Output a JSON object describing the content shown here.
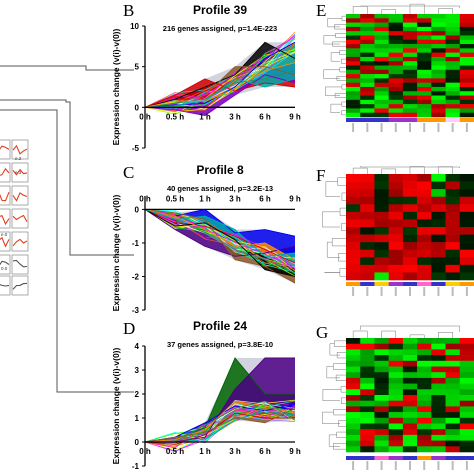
{
  "figure": {
    "panel_letters": [
      "B",
      "C",
      "D",
      "E",
      "F",
      "G"
    ],
    "mini_labels": [
      "e.2",
      "e.3",
      "e.0",
      "0.0"
    ]
  },
  "chart_data": [
    {
      "type": "line",
      "panel": "B",
      "title": "Profile 39",
      "subtitle": "216 genes assigned, p=1.4E-223",
      "ylabel": "Expression change (v(i)-v(0))",
      "x": [
        "0 h",
        "0.5 h",
        "1 h",
        "3 h",
        "6 h",
        "9 h"
      ],
      "yticks": [
        -5,
        0,
        5,
        10
      ],
      "ylim": [
        -5,
        10
      ],
      "model_profile": [
        0,
        0.5,
        1,
        3,
        5.5,
        8
      ],
      "series": [
        {
          "color": "#0000ee",
          "values": [
            0,
            0.3,
            0.5,
            2.5,
            6,
            8
          ]
        },
        {
          "color": "#000000",
          "values": [
            0,
            1,
            2.5,
            4,
            8,
            6
          ]
        },
        {
          "color": "#8b5a2b",
          "values": [
            0,
            0.5,
            1.5,
            5,
            5,
            4
          ]
        },
        {
          "color": "#d40000",
          "values": [
            0,
            1.5,
            3.5,
            2,
            3,
            2.5
          ]
        },
        {
          "color": "#2e8b57",
          "values": [
            0,
            0.5,
            1,
            3,
            3.5,
            4.5
          ]
        },
        {
          "color": "#8000c0",
          "values": [
            0,
            -0.3,
            -1,
            1.5,
            4,
            3
          ]
        },
        {
          "color": "#ff8c00",
          "values": [
            0,
            0.8,
            0.7,
            2.3,
            4.5,
            5.5
          ]
        },
        {
          "color": "#00aaaa",
          "values": [
            0,
            0.2,
            0.8,
            3.5,
            2.5,
            3.5
          ]
        }
      ]
    },
    {
      "type": "line",
      "panel": "C",
      "title": "Profile 8",
      "subtitle": "40 genes assigned, p=3.2E-13",
      "ylabel": "Expression change (v(i)-v(0))",
      "x": [
        "0 h",
        "0.5 h",
        "1 h",
        "3 h",
        "6 h",
        "9 h"
      ],
      "yticks": [
        -3,
        -2,
        -1,
        0
      ],
      "ylim": [
        -3,
        0.4
      ],
      "model_profile": [
        0,
        -0.3,
        -0.6,
        -1,
        -1.4,
        -1.7
      ],
      "series": [
        {
          "color": "#4b0082",
          "values": [
            0,
            -0.6,
            -1.1,
            -1.4,
            -1.3,
            -1.1
          ]
        },
        {
          "color": "#0000ee",
          "values": [
            0,
            -0.2,
            0,
            -0.7,
            -0.6,
            -0.8
          ]
        },
        {
          "color": "#d40000",
          "values": [
            0,
            -0.4,
            -0.5,
            -0.8,
            -1.2,
            -1.6
          ]
        },
        {
          "color": "#2e8b57",
          "values": [
            0,
            -0.3,
            -0.7,
            -1.2,
            -1.5,
            -1.9
          ]
        },
        {
          "color": "#8b5a2b",
          "values": [
            0,
            -0.1,
            -0.3,
            -1.5,
            -1.7,
            -2.2
          ]
        },
        {
          "color": "#000000",
          "values": [
            0,
            -0.5,
            -0.4,
            -0.9,
            -1.8,
            -2.0
          ]
        },
        {
          "color": "#ff8c00",
          "values": [
            0,
            -0.2,
            -0.6,
            -1.1,
            -1.0,
            -1.5
          ]
        },
        {
          "color": "#00aaaa",
          "values": [
            0,
            -0.3,
            -0.2,
            -0.6,
            -1.4,
            -1.3
          ]
        }
      ]
    },
    {
      "type": "line",
      "panel": "D",
      "title": "Profile 24",
      "subtitle": "37 genes assigned, p=3.8E-10",
      "ylabel": "Expression change (v(i)-v(0))",
      "x": [
        "0 h",
        "0.5 h",
        "1 h",
        "3 h",
        "6 h",
        "9 h"
      ],
      "yticks": [
        -1,
        0,
        1,
        2,
        3,
        4
      ],
      "ylim": [
        -1,
        4
      ],
      "model_profile": [
        0,
        0,
        0.4,
        1.3,
        1.3,
        1.3
      ],
      "series": [
        {
          "color": "#006400",
          "values": [
            0,
            0.1,
            0.6,
            3.5,
            2.0,
            2.0
          ]
        },
        {
          "color": "#4b0082",
          "values": [
            0,
            0,
            0.2,
            2.2,
            3.5,
            3.5
          ]
        },
        {
          "color": "#0000ee",
          "values": [
            0,
            0.2,
            0.8,
            1.5,
            1.3,
            1.6
          ]
        },
        {
          "color": "#d40000",
          "values": [
            0,
            -0.1,
            0.3,
            1.2,
            1.0,
            1.0
          ]
        },
        {
          "color": "#ff8c00",
          "values": [
            0,
            0.1,
            0.5,
            1.7,
            1.5,
            1.2
          ]
        },
        {
          "color": "#00aaaa",
          "values": [
            0,
            0,
            0.1,
            0.9,
            1.3,
            1.1
          ]
        },
        {
          "color": "#8b5a2b",
          "values": [
            0,
            0.2,
            0.4,
            1.0,
            0.8,
            1.4
          ]
        },
        {
          "color": "#2e8b57",
          "values": [
            0,
            0,
            0.7,
            1.4,
            1.7,
            0.9
          ]
        }
      ]
    },
    {
      "type": "heatmap",
      "panel": "E",
      "palette": [
        "#00dd00",
        "#000000",
        "#dd0000"
      ],
      "columns": 9,
      "rows": 24,
      "column_colors": [
        "#3333cc",
        "#3333cc",
        "#3333cc",
        "#9933cc",
        "#9933cc",
        "#ff9900",
        "#ff9900",
        "#ffccff",
        "#ff9900"
      ]
    },
    {
      "type": "heatmap",
      "panel": "F",
      "palette": [
        "#00dd00",
        "#000000",
        "#dd0000"
      ],
      "columns": 9,
      "rows": 14,
      "column_colors": [
        "#ff9900",
        "#3333cc",
        "#ffcc00",
        "#9933cc",
        "#3333cc",
        "#ff66cc",
        "#3333cc",
        "#ffcc00",
        "#ff9900"
      ]
    },
    {
      "type": "heatmap",
      "panel": "G",
      "palette": [
        "#00dd00",
        "#000000",
        "#dd0000"
      ],
      "columns": 9,
      "rows": 20,
      "column_colors": [
        "#3333cc",
        "#3333cc",
        "#ff66cc",
        "#9933cc",
        "#3333cc",
        "#ff9900",
        "#9933cc",
        "#3333cc",
        "#3333cc"
      ]
    }
  ]
}
